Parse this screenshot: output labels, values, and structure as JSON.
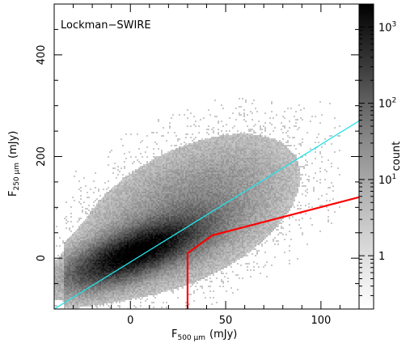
{
  "chart_data": {
    "type": "heatmap",
    "field_label": "Lockman−SWIRE",
    "x_axis": {
      "label_main": "F",
      "label_sub": "500 μm",
      "label_unit": "(mJy)",
      "range": [
        -40,
        120
      ],
      "ticks": [
        0,
        50,
        100
      ],
      "tick_labels": [
        "0",
        "50",
        "100"
      ]
    },
    "y_axis": {
      "label_main": "F",
      "label_sub": "250 μm",
      "label_unit": "(mJy)",
      "range": [
        -100,
        500
      ],
      "ticks": [
        0,
        200,
        400
      ],
      "tick_labels": [
        "0",
        "200",
        "400"
      ]
    },
    "colorbar": {
      "label": "count",
      "scale": "log",
      "range": [
        0.2,
        2000
      ],
      "ticks": [
        {
          "value": 1,
          "base": "1",
          "exp": ""
        },
        {
          "value": 10,
          "base": "10",
          "exp": "1"
        },
        {
          "value": 100,
          "base": "10",
          "exp": "2"
        },
        {
          "value": 1000,
          "base": "10",
          "exp": "3"
        }
      ],
      "colormap": "grayscale, high count = black"
    },
    "density": {
      "description": "2D histogram of sources, peak near (0, 0) elongated along F250 ≈ 1.3·F500 + 20",
      "core_center": [
        2,
        10
      ],
      "major_axis_slope": 1.3
    },
    "lines": [
      {
        "name": "",
        "color": "#22e0e8",
        "points": [
          [
            -40,
            -100
          ],
          [
            120,
            270
          ]
        ]
      },
      {
        "name": "",
        "color": "#ff0000",
        "points": [
          [
            30,
            -100
          ],
          [
            30,
            10
          ],
          [
            43,
            45
          ],
          [
            120,
            120
          ]
        ]
      }
    ]
  },
  "colors": {
    "diagonal_line": "#22e0e8",
    "selection_line": "#ff0000",
    "axis": "#000000"
  }
}
